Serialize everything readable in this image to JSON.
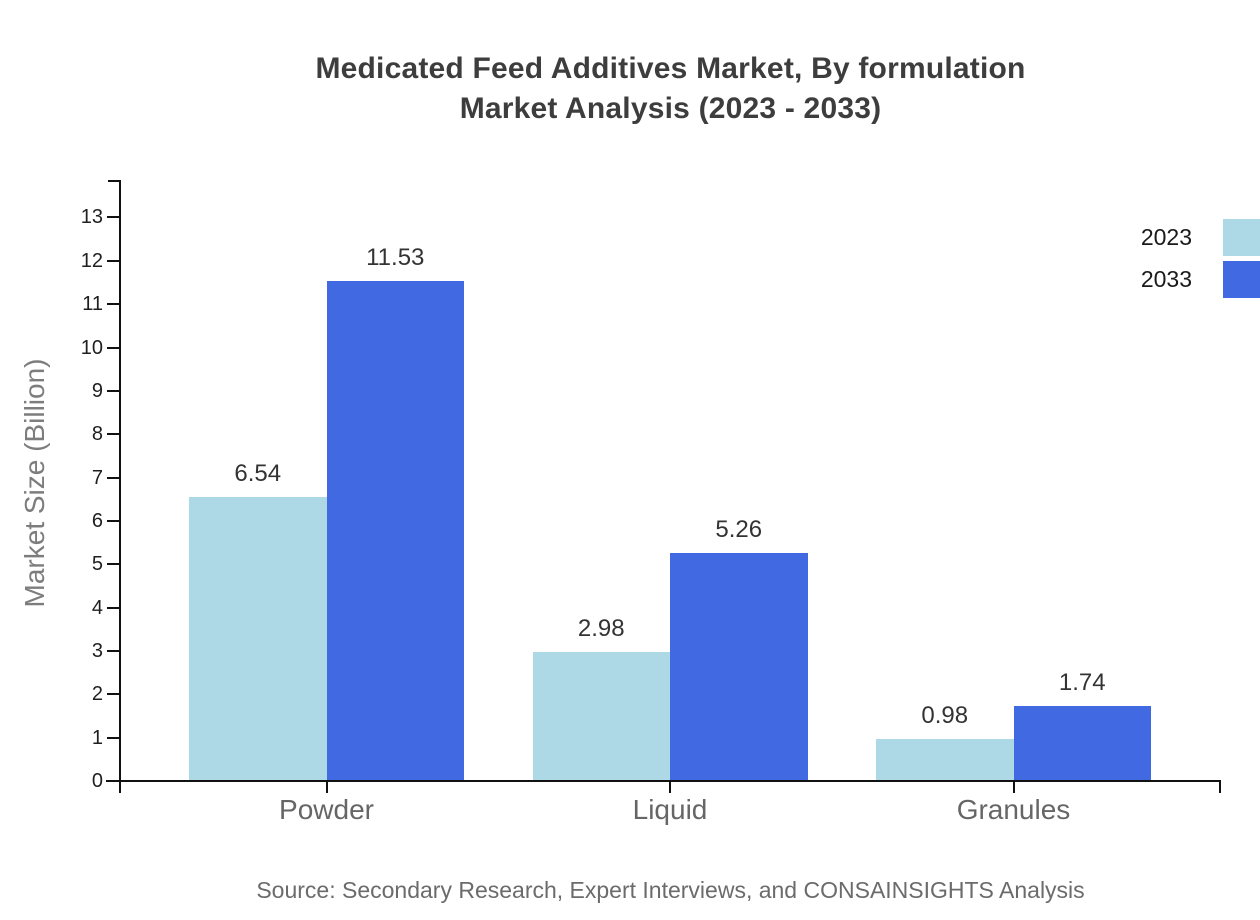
{
  "title": {
    "line1": "Medicated Feed Additives Market, By formulation",
    "line2": "Market Analysis (2023 - 2033)"
  },
  "source_note": "Source: Secondary Research, Expert Interviews, and CONSAINSIGHTS Analysis",
  "chart_data": {
    "type": "bar",
    "title": "Medicated Feed Additives Market, By formulation Market Analysis (2023 - 2033)",
    "categories": [
      "Powder",
      "Liquid",
      "Granules"
    ],
    "series": [
      {
        "name": "2023",
        "color": "#ADD8E6",
        "values": [
          6.54,
          2.98,
          0.98
        ]
      },
      {
        "name": "2033",
        "color": "#4169E1",
        "values": [
          11.53,
          5.26,
          1.74
        ]
      }
    ],
    "xlabel": "",
    "ylabel": "Market Size (Billion)",
    "ylim": [
      0,
      13
    ],
    "yticks": [
      0,
      1,
      2,
      3,
      4,
      5,
      6,
      7,
      8,
      9,
      10,
      11,
      12,
      13
    ],
    "grid": false,
    "legend_position": "top-right",
    "value_labels": true,
    "axis_color": "#111111",
    "tick_label_color": "#1f1f1f",
    "category_label_color": "#666666",
    "value_label_color": "#333333",
    "title_color": "#3d3d3d",
    "ylabel_color": "#7d7d7d",
    "source_color": "#6b6b6b",
    "background_color": "#ffffff"
  }
}
